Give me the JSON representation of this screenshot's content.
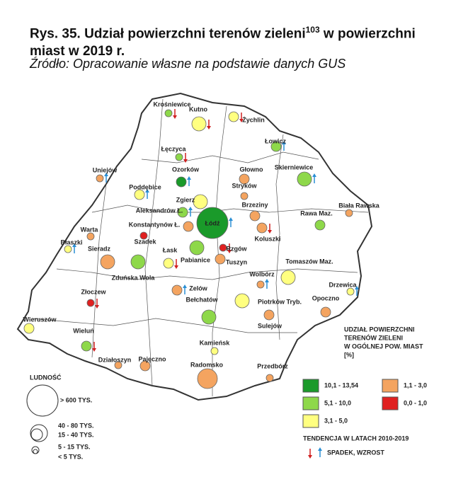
{
  "header": {
    "title_main": "Rys. 35. Udział powierzchni terenów zieleni",
    "footnote": "103",
    "title_rest": " w powierzchni miast w 2019 r.",
    "source": "Źródło: Opracowanie własne na podstawie danych GUS"
  },
  "cities": [
    "Krośniewice",
    "Kutno",
    "Żychlin",
    "Łowicz",
    "Łęczyca",
    "Ozorków",
    "Głowno",
    "Skierniewice",
    "Uniejów",
    "Poddębice",
    "Stryków",
    "Zgierz",
    "Aleksandrów Ł.",
    "Brzeziny",
    "Biała Rawska",
    "Konstantynów Ł.",
    "Łódź",
    "Rawa Maz.",
    "Warta",
    "Szadek",
    "Koluszki",
    "Błaszki",
    "Sieradz",
    "Łask",
    "Pabianice",
    "Rzgów",
    "Tuszyn",
    "Tomaszów Maz.",
    "Zduńska Wola",
    "Wolbórz",
    "Drzewica",
    "Zelów",
    "Złoczew",
    "Bełchatów",
    "Piotrków Tryb.",
    "Opoczno",
    "Sulejów",
    "Wieruszów",
    "Wieluń",
    "Kamieńsk",
    "Działoszyn",
    "Pajęczno",
    "Radomsko",
    "Przedbórz"
  ],
  "legend_share": {
    "title": [
      "UDZIAŁ POWIERZCHNI",
      "TERENÓW ZIELENI",
      "W OGÓLNEJ POW. MIAST",
      "[%]"
    ],
    "classes": [
      "10,1 - 13,54",
      "5,1 - 10,0",
      "3,1 - 5,0",
      "1,1 - 3,0",
      "0,0 - 1,0"
    ]
  },
  "legend_population": {
    "title": "LUDNOŚĆ",
    "classes": [
      "> 600 TYS.",
      "40 - 80 TYS.",
      "15 - 40 TYS.",
      "5 - 15 TYS.",
      "< 5 TYS."
    ]
  },
  "legend_trend": {
    "title": "TENDENCJA W LATACH 2010-2019",
    "label": "SPADEK, WZROST"
  }
}
